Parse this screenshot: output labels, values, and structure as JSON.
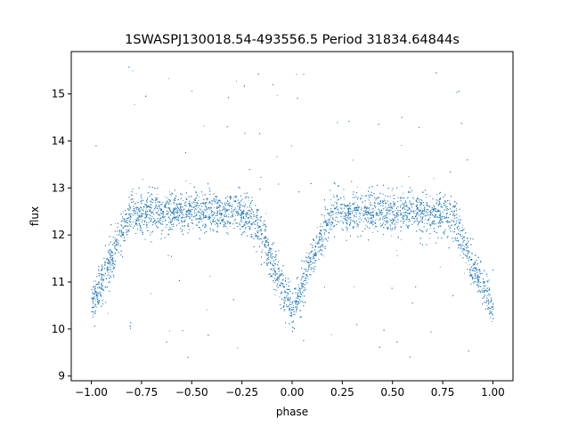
{
  "chart_data": {
    "type": "scatter",
    "title": "1SWASPJ130018.54-493556.5 Period 31834.64844s",
    "xlabel": "phase",
    "ylabel": "flux",
    "xlim": [
      -1.1,
      1.1
    ],
    "ylim": [
      8.9,
      15.9
    ],
    "xticks": [
      -1.0,
      -0.75,
      -0.5,
      -0.25,
      0.0,
      0.25,
      0.5,
      0.75,
      1.0
    ],
    "xtick_labels": [
      "−1.00",
      "−0.75",
      "−0.50",
      "−0.25",
      "0.00",
      "0.25",
      "0.50",
      "0.75",
      "1.00"
    ],
    "yticks": [
      9,
      10,
      11,
      12,
      13,
      14,
      15
    ],
    "ytick_labels": [
      "9",
      "10",
      "11",
      "12",
      "13",
      "14",
      "15"
    ],
    "grid": false,
    "legend": "none",
    "point_color": "#1f77b4",
    "series": [
      {
        "description_values": "Folded light curve: baseline flux ~12.5 with eclipse minima near phase -1.0, 0.0 and 1.0 dipping to ~10.3; representative points listed (x = phase, y = flux)",
        "x": [
          -1.0,
          -0.95,
          -0.9,
          -0.85,
          -0.8,
          -0.75,
          -0.6,
          -0.45,
          -0.3,
          -0.2,
          -0.15,
          -0.1,
          -0.05,
          0.0,
          0.05,
          0.1,
          0.15,
          0.2,
          0.35,
          0.5,
          0.65,
          0.8,
          0.85,
          0.9,
          0.95,
          1.0
        ],
        "y": [
          10.5,
          11.0,
          11.5,
          12.1,
          12.5,
          12.5,
          12.5,
          12.5,
          12.5,
          12.4,
          12.0,
          11.4,
          10.9,
          10.4,
          10.9,
          11.5,
          12.0,
          12.5,
          12.5,
          12.5,
          12.5,
          12.4,
          11.8,
          11.3,
          10.9,
          10.4
        ]
      }
    ]
  }
}
